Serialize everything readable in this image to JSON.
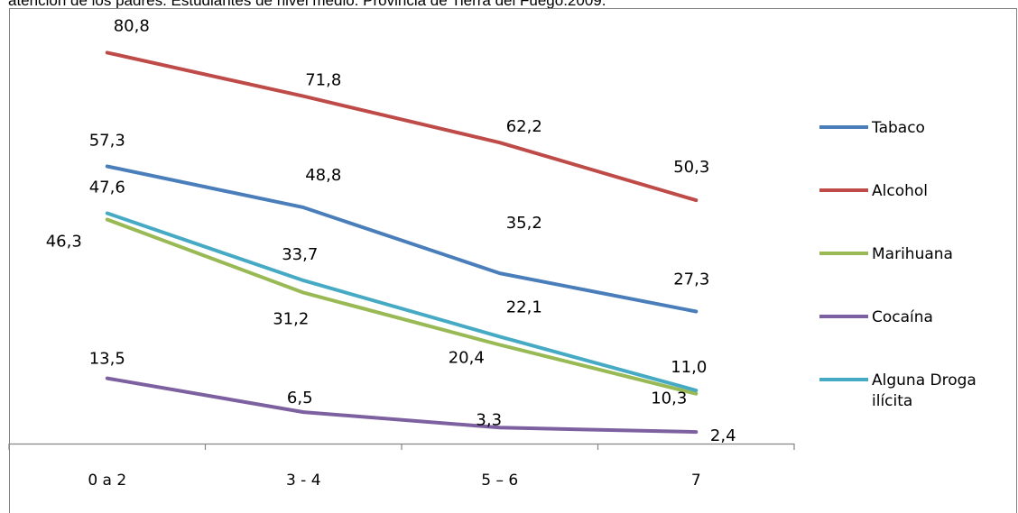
{
  "caption": "atención de los padres. Estudiantes de nivel medio. Provincia de Tierra del Fuego.2009.",
  "chart_data": {
    "type": "line",
    "categories": [
      "0 a 2",
      "3 - 4",
      "5 – 6",
      "7"
    ],
    "ylim": [
      0,
      90
    ],
    "grid": false,
    "legend_position": "right",
    "series": [
      {
        "name": "Tabaco",
        "color": "#4a7ebb",
        "values": [
          57.3,
          48.8,
          35.2,
          27.3
        ],
        "labels": [
          "57,3",
          "48,8",
          "35,2",
          "27,3"
        ]
      },
      {
        "name": "Alcohol",
        "color": "#be4b48",
        "values": [
          80.8,
          71.8,
          62.2,
          50.3
        ],
        "labels": [
          "80,8",
          "71,8",
          "62,2",
          "50,3"
        ]
      },
      {
        "name": "Marihuana",
        "color": "#98b954",
        "values": [
          46.3,
          31.2,
          20.4,
          10.3
        ],
        "labels": [
          "46,3",
          "31,2",
          "20,4",
          "10,3"
        ]
      },
      {
        "name": "Cocaína",
        "color": "#7d60a0",
        "values": [
          13.5,
          6.5,
          3.3,
          2.4
        ],
        "labels": [
          "13,5",
          "6,5",
          "3,3",
          "2,4"
        ]
      },
      {
        "name": "Alguna Droga ilícita",
        "legend_lines": [
          "Alguna Droga",
          "ilícita"
        ],
        "color": "#46aac5",
        "values": [
          47.6,
          33.7,
          22.1,
          11.0
        ],
        "labels": [
          "47,6",
          "33,7",
          "22,1",
          "11,0"
        ]
      }
    ]
  }
}
